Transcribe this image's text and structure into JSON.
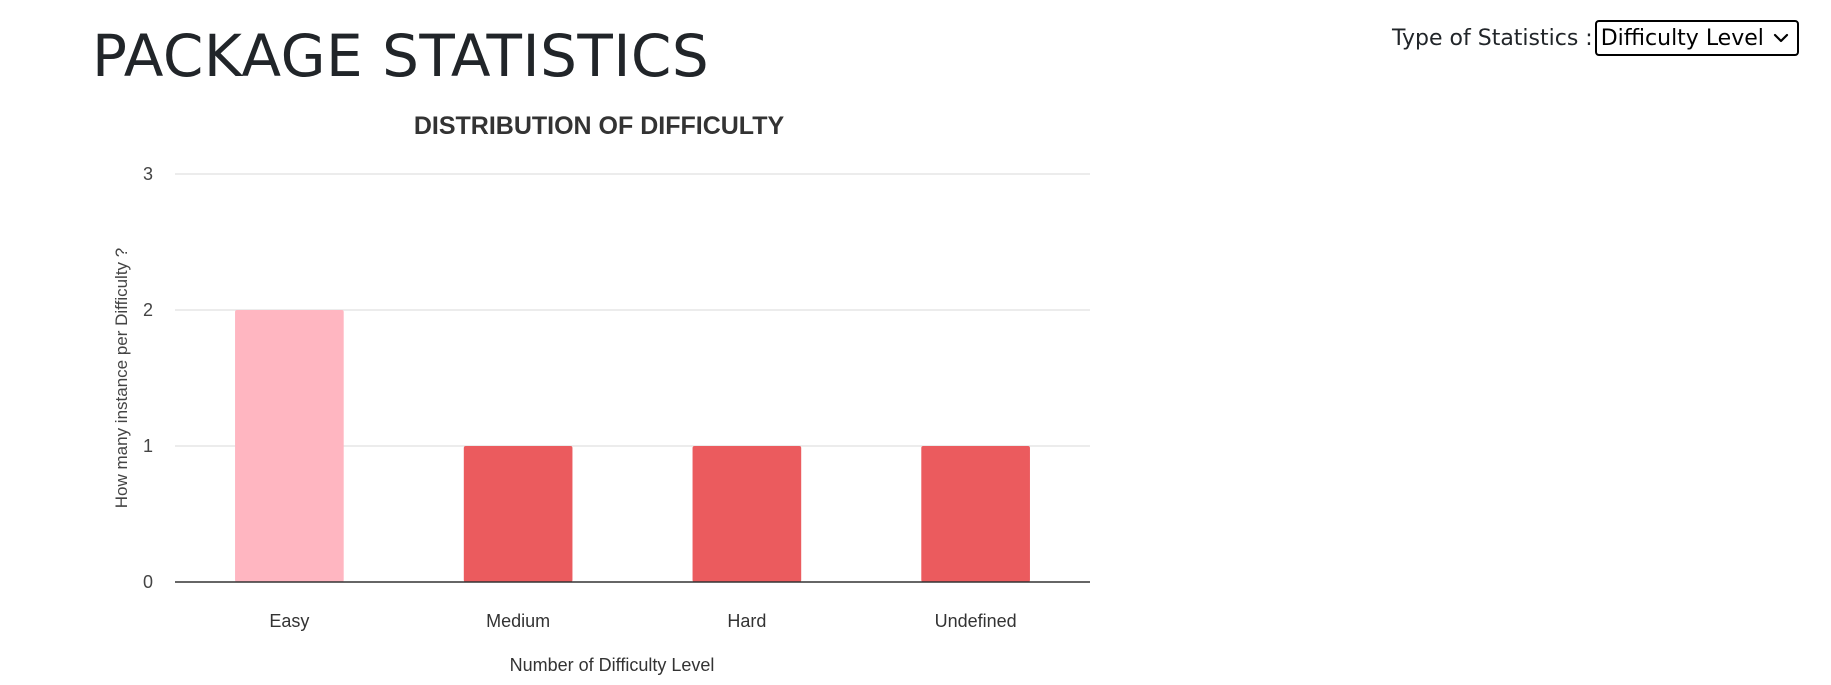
{
  "page": {
    "title": "PACKAGE STATISTICS"
  },
  "stats_type": {
    "label": "Type of Statistics :",
    "selected": "Difficulty Level",
    "chevron_icon": "chevron-down-icon"
  },
  "chart_data": {
    "type": "bar",
    "title": "DISTRIBUTION OF DIFFICULTY",
    "xlabel": "Number of Difficulty Level",
    "ylabel": "How many instance per Difficulty ?",
    "categories": [
      "Easy",
      "Medium",
      "Hard",
      "Undefined"
    ],
    "values": [
      2,
      1,
      1,
      1
    ],
    "colors": [
      "#ffb6c1",
      "#eb5b5e",
      "#eb5b5e",
      "#eb5b5e"
    ],
    "ylim": [
      0,
      3
    ],
    "yticks": [
      0,
      1,
      2,
      3
    ],
    "grid": true,
    "legend": "none"
  }
}
